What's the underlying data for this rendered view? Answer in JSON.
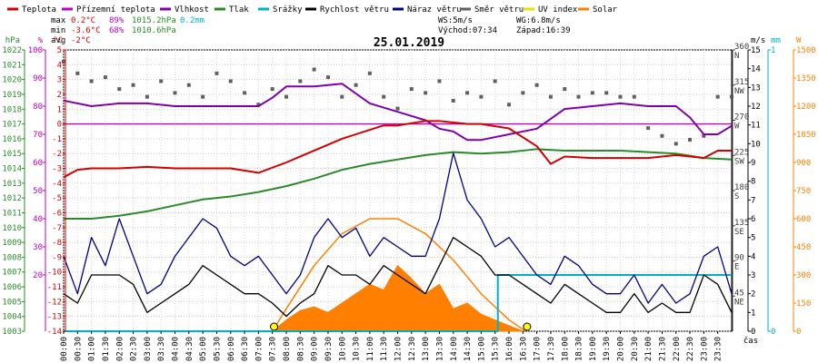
{
  "legend": [
    {
      "label": "Teplota",
      "color": "#d40000"
    },
    {
      "label": "Přízemní teplota",
      "color": "#c000c0"
    },
    {
      "label": "Vlhkost",
      "color": "#8000b0"
    },
    {
      "label": "Tlak",
      "color": "#2a8a2a"
    },
    {
      "label": "Srážky",
      "color": "#00b0c8"
    },
    {
      "label": "Rychlost větru",
      "color": "#000000"
    },
    {
      "label": "Náraz větru",
      "color": "#000080"
    },
    {
      "label": "Směr větru",
      "color": "#606060"
    },
    {
      "label": "UV index",
      "color": "#e8e000"
    },
    {
      "label": "Solar",
      "color": "#ff8000"
    }
  ],
  "stats": {
    "max_label": "max",
    "max_temp": "0.2°C",
    "max_hum": "89%",
    "max_press": "1015.2hPa",
    "max_rain": "0.2mm",
    "min_label": "min",
    "min_temp": "-3.6°C",
    "min_hum": "68%",
    "min_press": "1010.6hPa",
    "avg_label": "avg",
    "avg_temp": "-2°C",
    "ws": "WS:5m/s",
    "wg": "WG:6.8m/s",
    "sunrise": "Východ:07:34",
    "sunset": "Západ:16:39"
  },
  "chart_data": {
    "type": "line",
    "title": "25.01.2019",
    "xlabel": "čas",
    "x_ticks": [
      "00:00",
      "00:30",
      "01:00",
      "01:30",
      "02:00",
      "02:30",
      "03:00",
      "03:30",
      "04:00",
      "04:30",
      "05:00",
      "05:30",
      "06:00",
      "06:30",
      "07:00",
      "07:30",
      "08:00",
      "08:30",
      "09:00",
      "09:30",
      "10:00",
      "10:30",
      "11:00",
      "11:30",
      "12:00",
      "12:30",
      "13:00",
      "13:30",
      "14:00",
      "14:30",
      "15:00",
      "15:30",
      "16:00",
      "16:30",
      "17:00",
      "17:30",
      "18:00",
      "18:30",
      "19:00",
      "19:30",
      "20:00",
      "20:30",
      "21:00",
      "21:30",
      "22:00",
      "22:30",
      "23:00",
      "23:30"
    ],
    "axes": {
      "pressure": {
        "unit": "hPa",
        "range": [
          1003,
          1022
        ],
        "ticks": [
          1003,
          1004,
          1005,
          1006,
          1007,
          1008,
          1009,
          1010,
          1011,
          1012,
          1013,
          1014,
          1015,
          1016,
          1017,
          1018,
          1019,
          1020,
          1021,
          1022
        ],
        "color": "#2a8a2a"
      },
      "humidity": {
        "unit": "%",
        "range": [
          0,
          100
        ],
        "ticks": [
          20,
          30,
          40,
          50,
          60,
          70,
          80,
          90,
          100
        ],
        "color": "#c000c0"
      },
      "temperature": {
        "unit": "°C",
        "range": [
          -14,
          5
        ],
        "ticks": [
          -14,
          -13,
          -12,
          -11,
          -10,
          -9,
          -8,
          -7,
          -6,
          -5,
          -4,
          -3,
          -2,
          -1,
          0,
          1,
          2,
          3,
          4,
          5
        ],
        "color": "#d40000"
      },
      "direction": {
        "unit": "",
        "range": [
          0,
          360
        ],
        "ticks": [
          {
            "v": 45,
            "t": "45",
            "d": "NE"
          },
          {
            "v": 90,
            "t": "90",
            "d": "E"
          },
          {
            "v": 135,
            "t": "135",
            "d": "SE"
          },
          {
            "v": 180,
            "t": "180",
            "d": "S"
          },
          {
            "v": 225,
            "t": "225",
            "d": "SW"
          },
          {
            "v": 270,
            "t": "270",
            "d": "W"
          },
          {
            "v": 315,
            "t": "315",
            "d": "NW"
          },
          {
            "v": 360,
            "t": "360",
            "d": "N"
          }
        ],
        "color": "#404040"
      },
      "wind": {
        "unit": "m/s",
        "range": [
          0,
          15
        ],
        "ticks": [
          0,
          1,
          2,
          3,
          4,
          5,
          6,
          7,
          8,
          9,
          10,
          11,
          12,
          13,
          14,
          15
        ],
        "color": "#000000"
      },
      "rain": {
        "unit": "mm",
        "range": [
          0,
          1
        ],
        "ticks": [
          0,
          1
        ],
        "color": "#00b0c8"
      },
      "solar": {
        "unit": "W",
        "range": [
          0,
          1500
        ],
        "ticks": [
          0,
          150,
          300,
          450,
          600,
          750,
          900,
          1050,
          1200,
          1350,
          1500
        ],
        "color": "#ff8000"
      }
    },
    "series": [
      {
        "name": "Teplota",
        "axis": "temperature",
        "color": "#d40000",
        "x": [
          0,
          0.5,
          1,
          2,
          3,
          4,
          5,
          6,
          7,
          8,
          8.5,
          9,
          10,
          11,
          11.5,
          12,
          13,
          13.5,
          14,
          14.5,
          15,
          16,
          17,
          17.5,
          18,
          19,
          20,
          21,
          22,
          23,
          23.5,
          24
        ],
        "values": [
          -3.6,
          -3.1,
          -3,
          -3,
          -2.9,
          -3,
          -3,
          -3,
          -3.3,
          -2.6,
          -2.2,
          -1.8,
          -1,
          -0.4,
          -0.1,
          -0.1,
          0.2,
          0.2,
          0.1,
          0,
          0,
          -0.3,
          -1.5,
          -2.7,
          -2.2,
          -2.3,
          -2.3,
          -2.3,
          -2.1,
          -2.3,
          -1.8,
          -1.8
        ]
      },
      {
        "name": "Přízemní teplota",
        "axis": "temperature",
        "color": "#c000c0",
        "x": [
          0,
          24
        ],
        "values": [
          0,
          0
        ]
      },
      {
        "name": "Vlhkost",
        "axis": "humidity",
        "color": "#8000b0",
        "x": [
          0,
          1,
          2,
          3,
          4,
          5,
          6,
          7,
          7.5,
          8,
          9,
          10,
          11,
          12,
          13,
          13.5,
          14,
          14.5,
          15,
          16,
          17,
          18,
          19,
          20,
          21,
          22,
          22.5,
          23,
          23.5,
          24
        ],
        "values": [
          82,
          80,
          81,
          81,
          80,
          80,
          80,
          80,
          83,
          87,
          87,
          88,
          81,
          78,
          75,
          72,
          71,
          68,
          68,
          70,
          72,
          79,
          80,
          81,
          80,
          80,
          76,
          70,
          70,
          73
        ]
      },
      {
        "name": "Tlak",
        "axis": "pressure",
        "color": "#2a8a2a",
        "x": [
          0,
          1,
          2,
          3,
          4,
          5,
          6,
          7,
          8,
          9,
          10,
          11,
          12,
          13,
          14,
          15,
          16,
          17,
          18,
          19,
          20,
          21,
          22,
          23,
          24
        ],
        "values": [
          1010.6,
          1010.6,
          1010.8,
          1011.1,
          1011.5,
          1011.9,
          1012.1,
          1012.4,
          1012.8,
          1013.3,
          1013.9,
          1014.3,
          1014.6,
          1014.9,
          1015.1,
          1015.0,
          1015.1,
          1015.3,
          1015.2,
          1015.2,
          1015.2,
          1015.1,
          1015.0,
          1014.7,
          1014.6
        ]
      },
      {
        "name": "Srážky",
        "axis": "rain",
        "color": "#00b0c8",
        "x": [
          0,
          15.6,
          15.6,
          24
        ],
        "values": [
          0,
          0,
          0.2,
          0.2
        ]
      },
      {
        "name": "Rychlost větru",
        "axis": "wind",
        "color": "#000000",
        "x": [
          0,
          0.5,
          1,
          1.5,
          2,
          2.5,
          3,
          3.5,
          4,
          4.5,
          5,
          5.5,
          6,
          6.5,
          7,
          7.5,
          8,
          8.5,
          9,
          9.5,
          10,
          10.5,
          11,
          11.5,
          12,
          12.5,
          13,
          13.5,
          14,
          14.5,
          15,
          15.5,
          16,
          16.5,
          17,
          17.5,
          18,
          18.5,
          19,
          19.5,
          20,
          20.5,
          21,
          21.5,
          22,
          22.5,
          23,
          23.5,
          24
        ],
        "values": [
          2,
          1.5,
          3,
          3,
          3,
          2.5,
          1,
          1.5,
          2,
          2.5,
          3.5,
          3,
          2.5,
          2,
          2,
          1.5,
          0.8,
          1.5,
          2,
          3.5,
          3,
          3,
          2.5,
          3.5,
          3,
          2.5,
          2,
          3.5,
          5,
          4.5,
          4,
          3,
          3,
          2.5,
          2,
          1.5,
          2.5,
          2,
          1.5,
          1,
          1,
          2,
          1,
          1.5,
          1,
          1,
          3,
          2.5,
          1
        ]
      },
      {
        "name": "Náraz větru",
        "axis": "wind",
        "color": "#000080",
        "x": [
          0,
          0.5,
          1,
          1.5,
          2,
          2.5,
          3,
          3.5,
          4,
          4.5,
          5,
          5.5,
          6,
          6.5,
          7,
          7.5,
          8,
          8.5,
          9,
          9.5,
          10,
          10.5,
          11,
          11.5,
          12,
          12.5,
          13,
          13.5,
          14,
          14.5,
          15,
          15.5,
          16,
          16.5,
          17,
          17.5,
          18,
          18.5,
          19,
          19.5,
          20,
          20.5,
          21,
          21.5,
          22,
          22.5,
          23,
          23.5,
          24
        ],
        "values": [
          4,
          2,
          5,
          3.5,
          6,
          4,
          2,
          2.5,
          4,
          5,
          6,
          5.5,
          4,
          3.5,
          4,
          3,
          2,
          3,
          5,
          6,
          5,
          5.5,
          4,
          5,
          4.5,
          4,
          4,
          6,
          9.5,
          7,
          6,
          4.5,
          5,
          4,
          3,
          2.5,
          4,
          3.5,
          2.5,
          2,
          2,
          3,
          1.5,
          2.5,
          1.5,
          2,
          4,
          4.5,
          2
        ]
      },
      {
        "name": "Směr větru",
        "axis": "direction",
        "color": "#606060",
        "x": [
          0,
          0.5,
          1,
          1.5,
          2,
          2.5,
          3,
          3.5,
          4,
          4.5,
          5,
          5.5,
          6,
          6.5,
          7,
          7.5,
          8,
          8.5,
          9,
          9.5,
          10,
          10.5,
          11,
          11.5,
          12,
          12.5,
          13,
          13.5,
          14,
          14.5,
          15,
          15.5,
          16,
          16.5,
          17,
          17.5,
          18,
          18.5,
          19,
          19.5,
          20,
          20.5,
          21,
          21.5,
          22,
          22.5,
          23,
          23.5,
          24
        ],
        "values": [
          345,
          330,
          320,
          325,
          310,
          315,
          300,
          320,
          305,
          315,
          300,
          330,
          320,
          305,
          290,
          310,
          300,
          320,
          335,
          325,
          300,
          315,
          330,
          300,
          285,
          310,
          305,
          320,
          295,
          305,
          300,
          320,
          290,
          305,
          315,
          300,
          310,
          300,
          305,
          305,
          300,
          300,
          260,
          250,
          240,
          245,
          250,
          300,
          300
        ]
      },
      {
        "name": "Solar",
        "axis": "solar",
        "color": "#ff8000",
        "x": [
          7.5,
          8,
          8.5,
          9,
          9.5,
          10,
          10.5,
          11,
          11.5,
          12,
          12.5,
          13,
          13.5,
          14,
          14.5,
          15,
          15.5,
          16,
          16.5
        ],
        "values": [
          0,
          60,
          110,
          130,
          100,
          150,
          200,
          250,
          220,
          350,
          280,
          200,
          250,
          120,
          150,
          90,
          60,
          30,
          0
        ]
      },
      {
        "name": "Solar (clear-sky)",
        "axis": "solar",
        "color": "#ff8000",
        "x": [
          7.5,
          8,
          9,
          10,
          11,
          12,
          13,
          14,
          15,
          16,
          16.6
        ],
        "values": [
          0,
          120,
          350,
          520,
          600,
          600,
          520,
          380,
          200,
          60,
          0
        ]
      }
    ],
    "markers": [
      {
        "x": 7.56,
        "label": "Východ"
      },
      {
        "x": 16.65,
        "label": "Západ"
      }
    ]
  }
}
